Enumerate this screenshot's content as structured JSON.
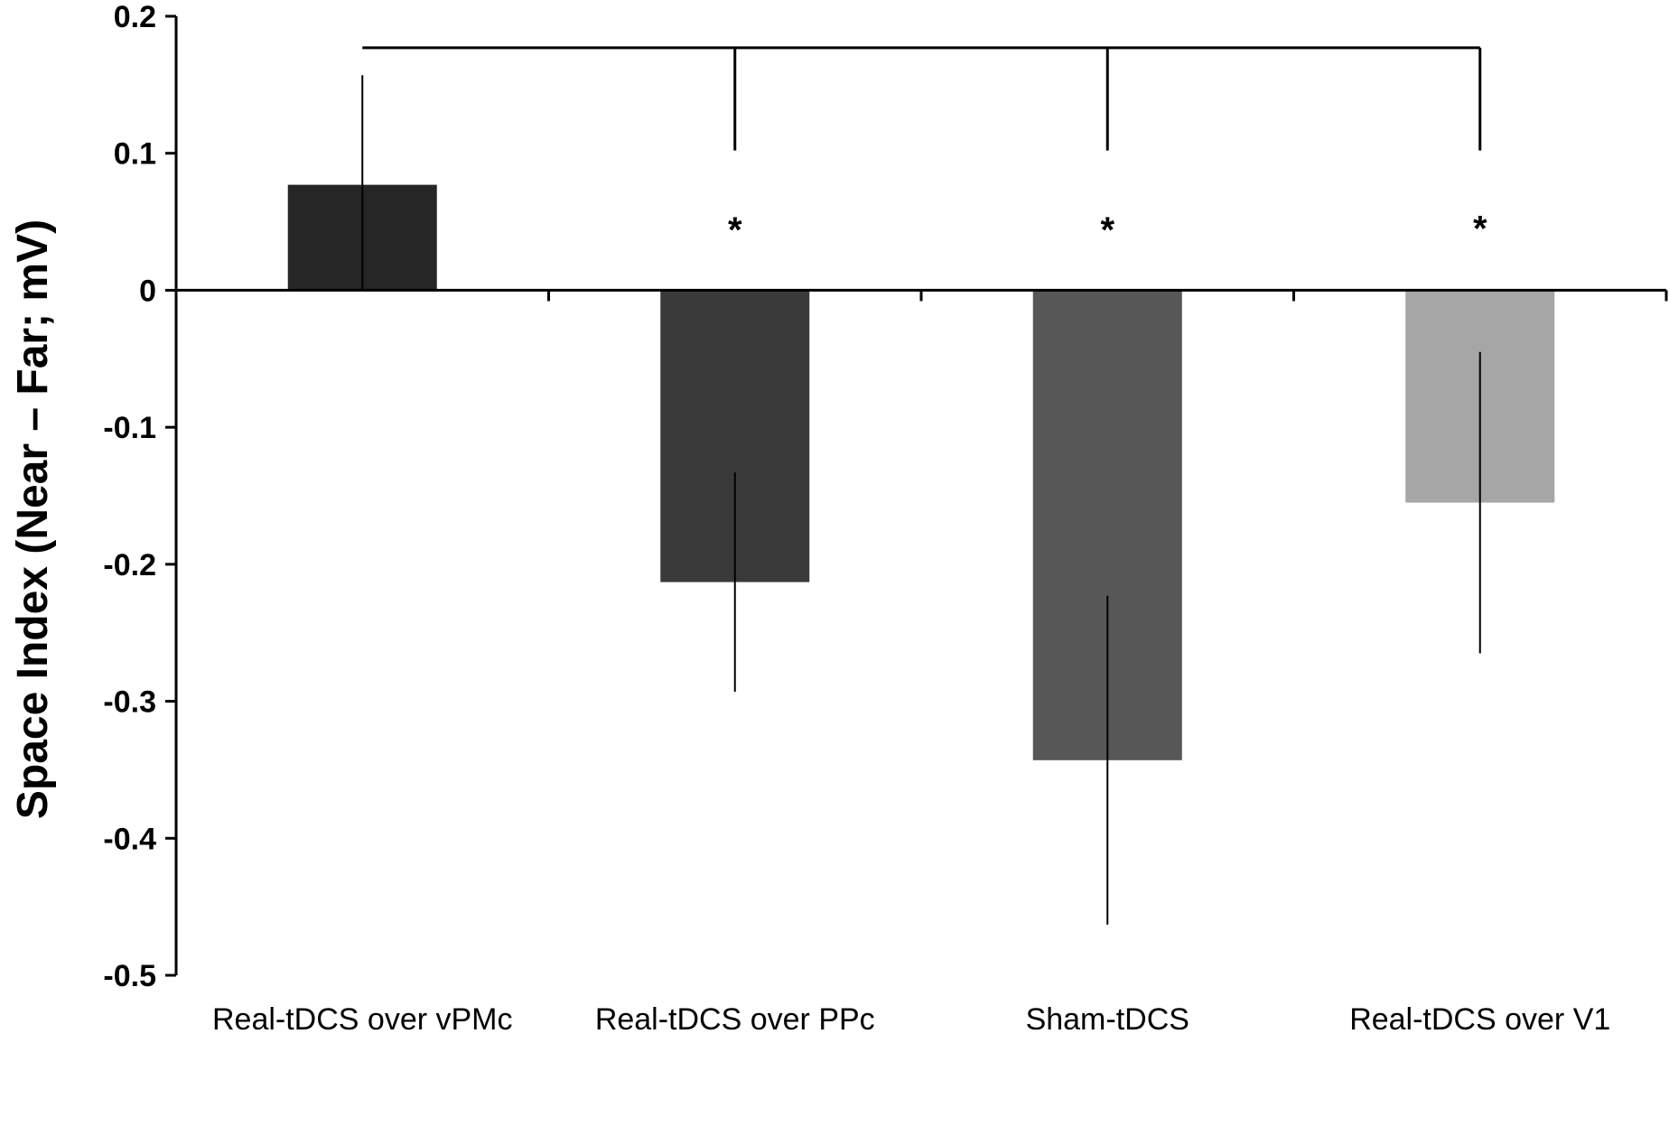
{
  "chart_data": {
    "type": "bar",
    "ylabel": "Space Index  (Near – Far; mV)",
    "ylim": [
      -0.5,
      0.2
    ],
    "yticks": [
      "0.2",
      "0.1",
      "0",
      "-0.1",
      "-0.2",
      "-0.3",
      "-0.4",
      "-0.5"
    ],
    "ytick_values": [
      0.2,
      0.1,
      0,
      -0.1,
      -0.2,
      -0.3,
      -0.4,
      -0.5
    ],
    "categories": [
      "Real-tDCS over vPMc",
      "Real-tDCS over PPc",
      "Sham-tDCS",
      "Real-tDCS over V1"
    ],
    "values": [
      0.077,
      -0.213,
      -0.343,
      -0.155
    ],
    "error_bars": [
      {
        "low": 0.0,
        "high": 0.157
      },
      {
        "low": -0.293,
        "high": -0.133
      },
      {
        "low": -0.463,
        "high": -0.223
      },
      {
        "low": -0.265,
        "high": -0.045
      }
    ],
    "colors": [
      "#262626",
      "#3a3a3a",
      "#575757",
      "#a6a6a6"
    ],
    "significance_bracket": {
      "from_category": 0,
      "to_categories": [
        1,
        2,
        3
      ],
      "y": 0.177,
      "drop_to": 0.102
    },
    "significance_markers": [
      {
        "category": 1,
        "label": "*",
        "y": 0.047
      },
      {
        "category": 2,
        "label": "*",
        "y": 0.047
      },
      {
        "category": 3,
        "label": "*",
        "y": 0.048
      }
    ],
    "grid": false,
    "legend": "none"
  }
}
